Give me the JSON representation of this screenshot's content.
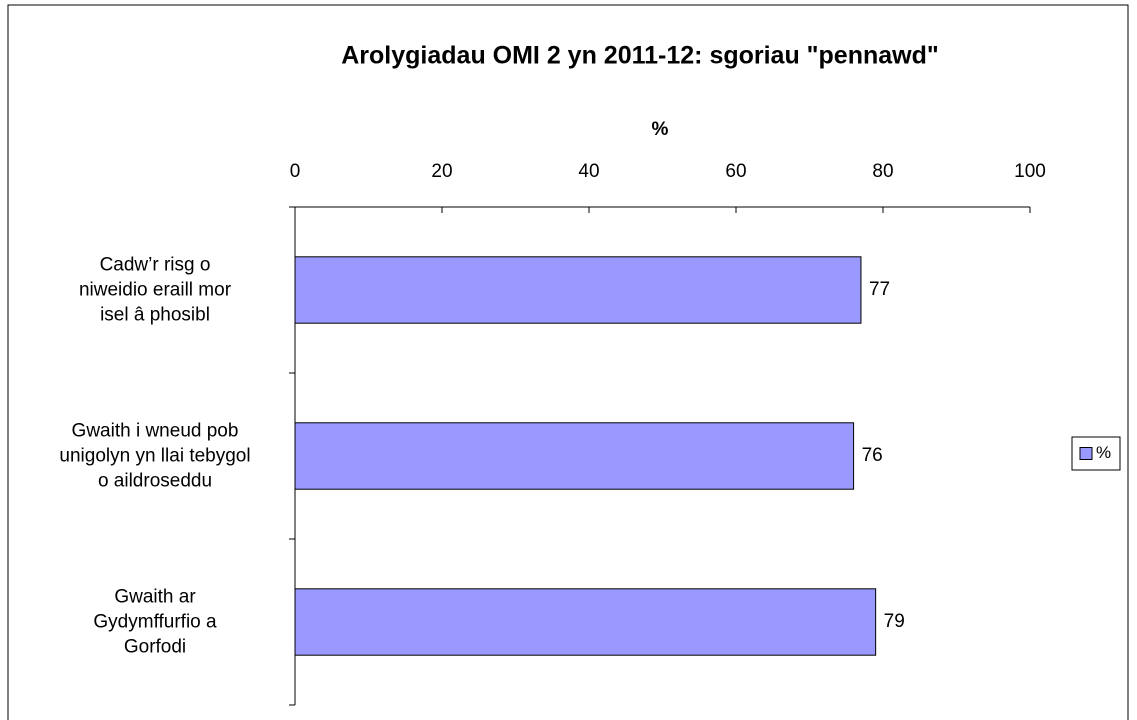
{
  "chart_data": {
    "type": "barh",
    "title": "Arolygiadau OMI 2 yn 2011-12: sgoriau \"pennawd\"",
    "xlabel": "%",
    "categories": [
      "Cadw’r risg  o\nniweidio eraill mor\nisel â phosibl",
      "Gwaith i wneud pob\nunigolyn yn llai tebygol\no aildroseddu",
      "Gwaith ar\nGydymffurfio a\nGorfodi"
    ],
    "series": [
      {
        "name": "%",
        "color": "#9999ff",
        "values": [
          77,
          76,
          79
        ]
      }
    ],
    "xlim": [
      0,
      100
    ],
    "xticks": [
      0,
      20,
      40,
      60,
      80,
      100
    ],
    "legend": "right"
  }
}
